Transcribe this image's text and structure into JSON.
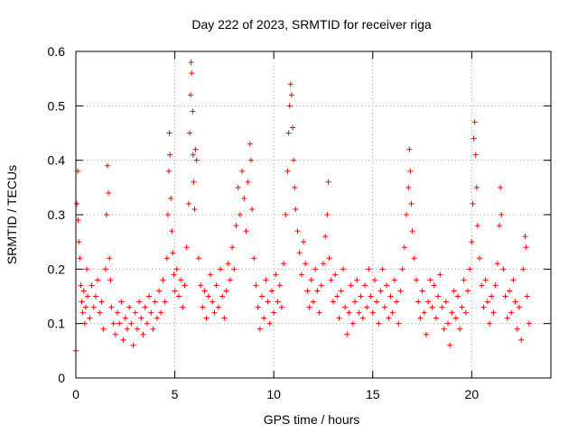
{
  "chart_data": {
    "type": "scatter",
    "title": "Day 222 of 2023, SRMTID for receiver riga",
    "xlabel": "GPS time / hours",
    "ylabel": "SRMTID / TECUs",
    "xlim": [
      0,
      24
    ],
    "ylim": [
      0,
      0.6
    ],
    "xticks": [
      0,
      5,
      10,
      15,
      20
    ],
    "yticks": [
      0,
      0.1,
      0.2,
      0.3,
      0.4,
      0.5,
      0.6
    ],
    "xtick_labels": [
      "0",
      "5",
      "10",
      "15",
      "20"
    ],
    "ytick_labels": [
      "0",
      "0.1",
      "0.2",
      "0.3",
      "0.4",
      "0.5",
      "0.6"
    ],
    "grid": true,
    "marker": "+",
    "color": "#ff0000",
    "series": [
      {
        "name": "SRMTID",
        "points": [
          [
            0.0,
            0.05
          ],
          [
            0.05,
            0.32
          ],
          [
            0.1,
            0.38
          ],
          [
            0.12,
            0.29
          ],
          [
            0.15,
            0.25
          ],
          [
            0.2,
            0.22
          ],
          [
            0.25,
            0.17
          ],
          [
            0.3,
            0.14
          ],
          [
            0.35,
            0.12
          ],
          [
            0.4,
            0.16
          ],
          [
            0.45,
            0.1
          ],
          [
            0.5,
            0.13
          ],
          [
            0.55,
            0.2
          ],
          [
            0.6,
            0.15
          ],
          [
            0.7,
            0.11
          ],
          [
            0.8,
            0.17
          ],
          [
            0.9,
            0.13
          ],
          [
            1.0,
            0.15
          ],
          [
            1.1,
            0.18
          ],
          [
            1.2,
            0.12
          ],
          [
            1.3,
            0.14
          ],
          [
            1.4,
            0.09
          ],
          [
            1.5,
            0.2
          ],
          [
            1.55,
            0.3
          ],
          [
            1.6,
            0.39
          ],
          [
            1.65,
            0.34
          ],
          [
            1.7,
            0.22
          ],
          [
            1.75,
            0.18
          ],
          [
            1.8,
            0.13
          ],
          [
            1.9,
            0.1
          ],
          [
            2.0,
            0.08
          ],
          [
            2.1,
            0.12
          ],
          [
            2.2,
            0.1
          ],
          [
            2.3,
            0.14
          ],
          [
            2.4,
            0.07
          ],
          [
            2.5,
            0.11
          ],
          [
            2.6,
            0.09
          ],
          [
            2.7,
            0.13
          ],
          [
            2.8,
            0.1
          ],
          [
            2.9,
            0.06
          ],
          [
            3.0,
            0.12
          ],
          [
            3.1,
            0.09
          ],
          [
            3.2,
            0.14
          ],
          [
            3.3,
            0.11
          ],
          [
            3.4,
            0.08
          ],
          [
            3.5,
            0.13
          ],
          [
            3.6,
            0.1
          ],
          [
            3.7,
            0.15
          ],
          [
            3.8,
            0.12
          ],
          [
            3.9,
            0.09
          ],
          [
            4.0,
            0.14
          ],
          [
            4.1,
            0.11
          ],
          [
            4.2,
            0.16
          ],
          [
            4.3,
            0.12
          ],
          [
            4.4,
            0.18
          ],
          [
            4.5,
            0.14
          ],
          [
            4.6,
            0.22
          ],
          [
            4.65,
            0.3
          ],
          [
            4.7,
            0.38
          ],
          [
            4.72,
            0.45
          ],
          [
            4.75,
            0.41
          ],
          [
            4.8,
            0.33
          ],
          [
            4.85,
            0.27
          ],
          [
            4.9,
            0.23
          ],
          [
            4.95,
            0.19
          ],
          [
            5.0,
            0.16
          ],
          [
            5.1,
            0.2
          ],
          [
            5.2,
            0.15
          ],
          [
            5.3,
            0.18
          ],
          [
            5.4,
            0.13
          ],
          [
            5.5,
            0.17
          ],
          [
            5.6,
            0.24
          ],
          [
            5.7,
            0.32
          ],
          [
            5.75,
            0.45
          ],
          [
            5.8,
            0.52
          ],
          [
            5.82,
            0.58
          ],
          [
            5.85,
            0.56
          ],
          [
            5.9,
            0.49
          ],
          [
            5.92,
            0.41
          ],
          [
            5.95,
            0.36
          ],
          [
            6.0,
            0.31
          ],
          [
            6.05,
            0.42
          ],
          [
            6.1,
            0.4
          ],
          [
            6.2,
            0.22
          ],
          [
            6.3,
            0.17
          ],
          [
            6.4,
            0.13
          ],
          [
            6.5,
            0.16
          ],
          [
            6.6,
            0.11
          ],
          [
            6.7,
            0.15
          ],
          [
            6.8,
            0.19
          ],
          [
            6.9,
            0.14
          ],
          [
            7.0,
            0.12
          ],
          [
            7.1,
            0.17
          ],
          [
            7.2,
            0.13
          ],
          [
            7.3,
            0.2
          ],
          [
            7.4,
            0.15
          ],
          [
            7.5,
            0.11
          ],
          [
            7.6,
            0.16
          ],
          [
            7.7,
            0.21
          ],
          [
            7.8,
            0.18
          ],
          [
            7.9,
            0.24
          ],
          [
            8.0,
            0.2
          ],
          [
            8.1,
            0.28
          ],
          [
            8.2,
            0.35
          ],
          [
            8.3,
            0.3
          ],
          [
            8.4,
            0.38
          ],
          [
            8.5,
            0.33
          ],
          [
            8.6,
            0.27
          ],
          [
            8.7,
            0.36
          ],
          [
            8.8,
            0.43
          ],
          [
            8.85,
            0.4
          ],
          [
            8.9,
            0.31
          ],
          [
            9.0,
            0.22
          ],
          [
            9.1,
            0.17
          ],
          [
            9.2,
            0.13
          ],
          [
            9.3,
            0.09
          ],
          [
            9.4,
            0.15
          ],
          [
            9.5,
            0.11
          ],
          [
            9.6,
            0.18
          ],
          [
            9.7,
            0.14
          ],
          [
            9.8,
            0.1
          ],
          [
            9.9,
            0.16
          ],
          [
            10.0,
            0.12
          ],
          [
            10.1,
            0.19
          ],
          [
            10.2,
            0.14
          ],
          [
            10.3,
            0.17
          ],
          [
            10.4,
            0.13
          ],
          [
            10.5,
            0.21
          ],
          [
            10.6,
            0.3
          ],
          [
            10.7,
            0.38
          ],
          [
            10.75,
            0.45
          ],
          [
            10.8,
            0.5
          ],
          [
            10.85,
            0.54
          ],
          [
            10.9,
            0.52
          ],
          [
            10.95,
            0.46
          ],
          [
            11.0,
            0.4
          ],
          [
            11.05,
            0.35
          ],
          [
            11.1,
            0.31
          ],
          [
            11.2,
            0.27
          ],
          [
            11.3,
            0.23
          ],
          [
            11.4,
            0.19
          ],
          [
            11.5,
            0.25
          ],
          [
            11.6,
            0.21
          ],
          [
            11.7,
            0.16
          ],
          [
            11.8,
            0.13
          ],
          [
            11.9,
            0.18
          ],
          [
            12.0,
            0.14
          ],
          [
            12.1,
            0.2
          ],
          [
            12.2,
            0.16
          ],
          [
            12.3,
            0.12
          ],
          [
            12.4,
            0.17
          ],
          [
            12.5,
            0.21
          ],
          [
            12.6,
            0.26
          ],
          [
            12.7,
            0.3
          ],
          [
            12.75,
            0.36
          ],
          [
            12.8,
            0.22
          ],
          [
            12.9,
            0.18
          ],
          [
            13.0,
            0.14
          ],
          [
            13.1,
            0.19
          ],
          [
            13.2,
            0.15
          ],
          [
            13.3,
            0.11
          ],
          [
            13.4,
            0.16
          ],
          [
            13.5,
            0.2
          ],
          [
            13.6,
            0.13
          ],
          [
            13.7,
            0.08
          ],
          [
            13.8,
            0.12
          ],
          [
            13.9,
            0.17
          ],
          [
            14.0,
            0.1
          ],
          [
            14.1,
            0.14
          ],
          [
            14.2,
            0.18
          ],
          [
            14.3,
            0.12
          ],
          [
            14.4,
            0.15
          ],
          [
            14.5,
            0.11
          ],
          [
            14.6,
            0.17
          ],
          [
            14.7,
            0.13
          ],
          [
            14.8,
            0.2
          ],
          [
            14.9,
            0.15
          ],
          [
            15.0,
            0.12
          ],
          [
            15.1,
            0.18
          ],
          [
            15.2,
            0.14
          ],
          [
            15.3,
            0.1
          ],
          [
            15.4,
            0.16
          ],
          [
            15.5,
            0.2
          ],
          [
            15.6,
            0.13
          ],
          [
            15.7,
            0.17
          ],
          [
            15.8,
            0.11
          ],
          [
            15.9,
            0.15
          ],
          [
            16.0,
            0.12
          ],
          [
            16.1,
            0.18
          ],
          [
            16.2,
            0.14
          ],
          [
            16.3,
            0.1
          ],
          [
            16.4,
            0.16
          ],
          [
            16.5,
            0.2
          ],
          [
            16.6,
            0.24
          ],
          [
            16.7,
            0.3
          ],
          [
            16.8,
            0.35
          ],
          [
            16.85,
            0.42
          ],
          [
            16.9,
            0.38
          ],
          [
            16.95,
            0.32
          ],
          [
            17.0,
            0.27
          ],
          [
            17.1,
            0.22
          ],
          [
            17.2,
            0.18
          ],
          [
            17.3,
            0.14
          ],
          [
            17.4,
            0.11
          ],
          [
            17.5,
            0.16
          ],
          [
            17.6,
            0.12
          ],
          [
            17.7,
            0.08
          ],
          [
            17.8,
            0.14
          ],
          [
            17.9,
            0.18
          ],
          [
            18.0,
            0.13
          ],
          [
            18.1,
            0.17
          ],
          [
            18.2,
            0.11
          ],
          [
            18.3,
            0.15
          ],
          [
            18.4,
            0.19
          ],
          [
            18.5,
            0.13
          ],
          [
            18.6,
            0.09
          ],
          [
            18.7,
            0.14
          ],
          [
            18.8,
            0.1
          ],
          [
            18.9,
            0.06
          ],
          [
            19.0,
            0.12
          ],
          [
            19.1,
            0.16
          ],
          [
            19.2,
            0.11
          ],
          [
            19.3,
            0.15
          ],
          [
            19.4,
            0.09
          ],
          [
            19.5,
            0.13
          ],
          [
            19.6,
            0.18
          ],
          [
            19.7,
            0.12
          ],
          [
            19.8,
            0.16
          ],
          [
            19.9,
            0.2
          ],
          [
            20.0,
            0.25
          ],
          [
            20.05,
            0.32
          ],
          [
            20.1,
            0.44
          ],
          [
            20.15,
            0.47
          ],
          [
            20.2,
            0.41
          ],
          [
            20.25,
            0.35
          ],
          [
            20.3,
            0.28
          ],
          [
            20.4,
            0.22
          ],
          [
            20.5,
            0.17
          ],
          [
            20.6,
            0.13
          ],
          [
            20.7,
            0.18
          ],
          [
            20.8,
            0.14
          ],
          [
            20.9,
            0.1
          ],
          [
            21.0,
            0.15
          ],
          [
            21.1,
            0.12
          ],
          [
            21.2,
            0.17
          ],
          [
            21.3,
            0.21
          ],
          [
            21.4,
            0.28
          ],
          [
            21.45,
            0.35
          ],
          [
            21.5,
            0.3
          ],
          [
            21.6,
            0.2
          ],
          [
            21.7,
            0.15
          ],
          [
            21.8,
            0.11
          ],
          [
            21.9,
            0.16
          ],
          [
            22.0,
            0.12
          ],
          [
            22.1,
            0.18
          ],
          [
            22.2,
            0.14
          ],
          [
            22.3,
            0.09
          ],
          [
            22.4,
            0.13
          ],
          [
            22.5,
            0.07
          ],
          [
            22.6,
            0.2
          ],
          [
            22.7,
            0.26
          ],
          [
            22.75,
            0.24
          ],
          [
            22.8,
            0.15
          ],
          [
            22.9,
            0.1
          ]
        ]
      }
    ]
  }
}
